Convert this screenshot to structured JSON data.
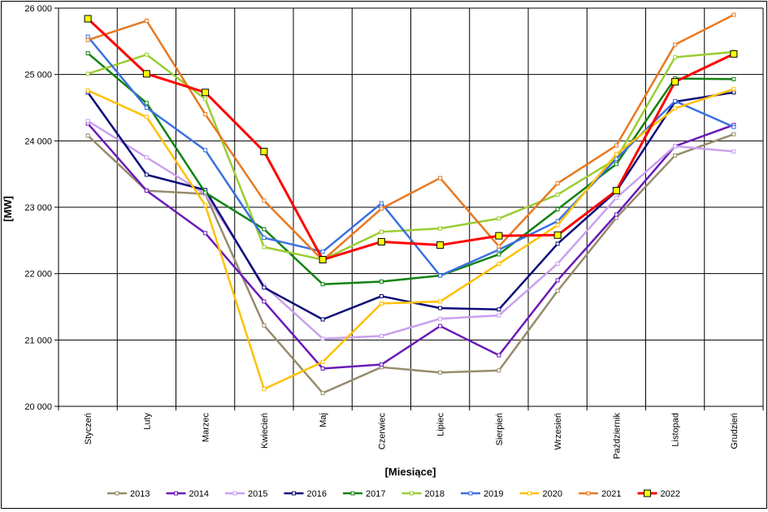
{
  "chart_data": {
    "type": "line",
    "xlabel": "[Miesiące]",
    "ylabel": "[MW]",
    "ylim": [
      20000,
      26000
    ],
    "yticks": [
      20000,
      21000,
      22000,
      23000,
      24000,
      25000,
      26000
    ],
    "ytick_labels": [
      "20 000",
      "21 000",
      "22 000",
      "23 000",
      "24 000",
      "25 000",
      "26 000"
    ],
    "grid": true,
    "legend_position": "bottom",
    "categories": [
      "Styczeń",
      "Luty",
      "Marzec",
      "Kwiecień",
      "Maj",
      "Czerwiec",
      "Lipiec",
      "Sierpień",
      "Wrzesień",
      "Październik",
      "Listopad",
      "Grudzień"
    ],
    "series": [
      {
        "name": "2013",
        "color": "#968c6c",
        "values": [
          24080,
          23250,
          23200,
          21220,
          20200,
          20590,
          20510,
          20540,
          21740,
          22840,
          23780,
          24100
        ]
      },
      {
        "name": "2014",
        "color": "#6a1ab8",
        "values": [
          24260,
          23250,
          22610,
          21580,
          20570,
          20630,
          21210,
          20770,
          21900,
          22890,
          23920,
          24240
        ]
      },
      {
        "name": "2015",
        "color": "#c9a0ee",
        "values": [
          24300,
          23750,
          23200,
          21820,
          21020,
          21060,
          21320,
          21370,
          22150,
          23140,
          23920,
          23840
        ]
      },
      {
        "name": "2016",
        "color": "#0d0d7a",
        "values": [
          24730,
          23490,
          23260,
          21790,
          21310,
          21660,
          21480,
          21460,
          22450,
          23240,
          24590,
          24730
        ]
      },
      {
        "name": "2017",
        "color": "#128212",
        "values": [
          25320,
          24570,
          23220,
          22670,
          21840,
          21880,
          21970,
          22290,
          22970,
          23650,
          24940,
          24930
        ]
      },
      {
        "name": "2018",
        "color": "#9acd32",
        "values": [
          25010,
          25300,
          24630,
          22400,
          22210,
          22630,
          22680,
          22830,
          23190,
          23730,
          25260,
          25340
        ]
      },
      {
        "name": "2019",
        "color": "#3a70e0",
        "values": [
          25570,
          24500,
          23860,
          22540,
          22330,
          23060,
          21970,
          22360,
          22790,
          23730,
          24600,
          24210
        ]
      },
      {
        "name": "2020",
        "color": "#ffc000",
        "values": [
          24760,
          24360,
          23030,
          20260,
          20670,
          21550,
          21580,
          22150,
          22730,
          23800,
          24490,
          24780
        ]
      },
      {
        "name": "2021",
        "color": "#e87820",
        "values": [
          25520,
          25810,
          24400,
          23100,
          22200,
          22980,
          23440,
          22410,
          23360,
          23930,
          25450,
          25900
        ]
      },
      {
        "name": "2022",
        "color": "#ff0000",
        "values": [
          25840,
          25010,
          24730,
          23840,
          22210,
          22480,
          22430,
          22570,
          22580,
          23250,
          24890,
          25310
        ]
      }
    ]
  }
}
